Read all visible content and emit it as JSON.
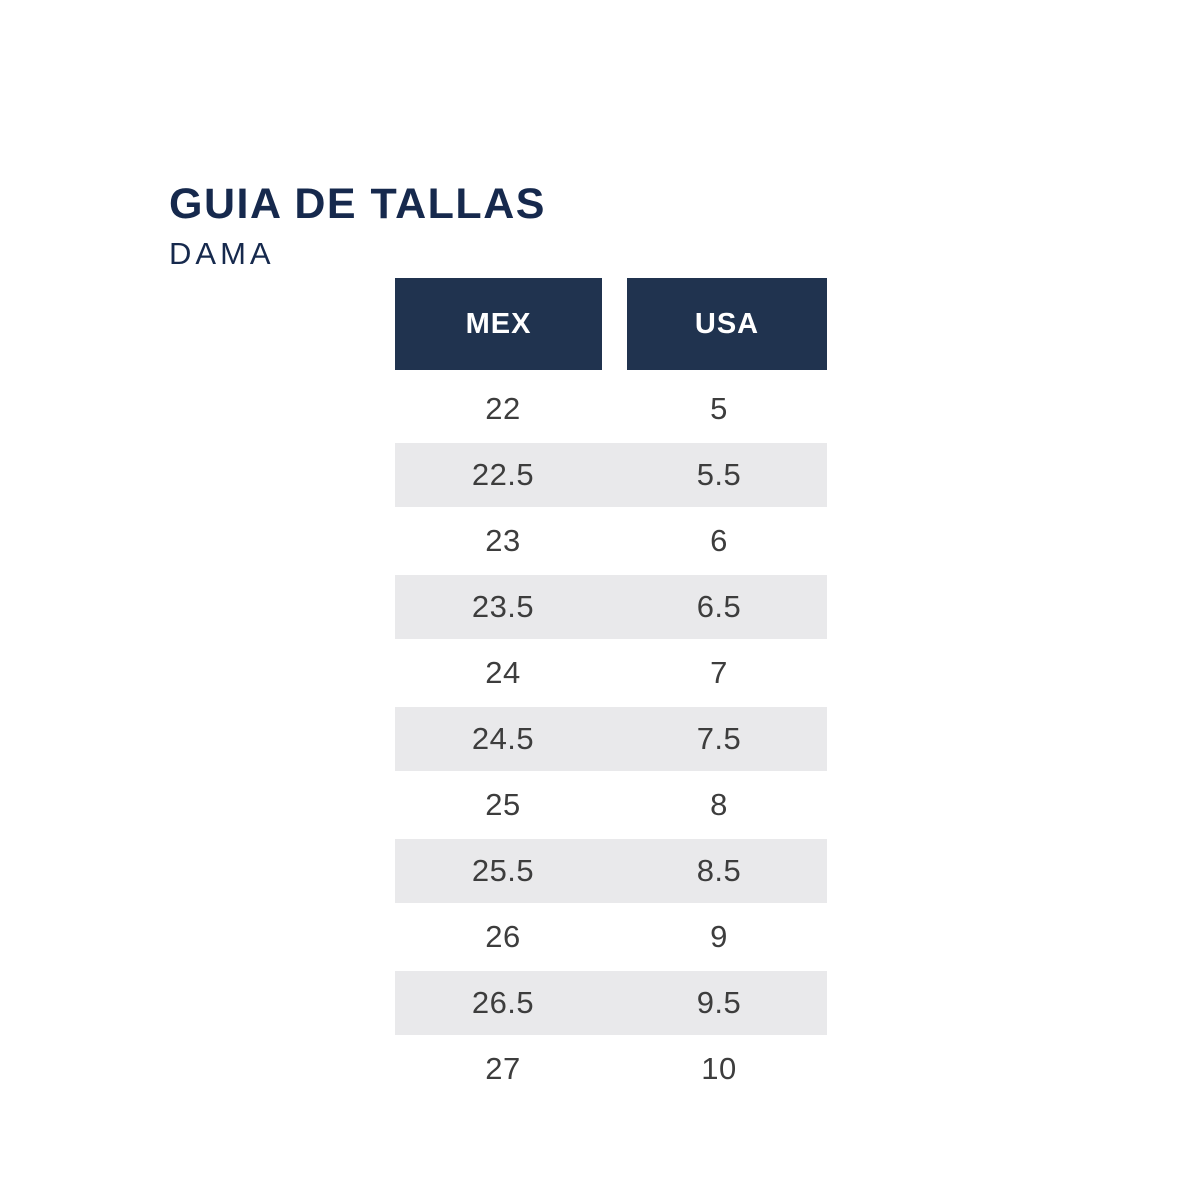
{
  "page": {
    "title": "GUIA DE TALLAS",
    "subtitle": "DAMA"
  },
  "chart_data": {
    "type": "table",
    "title": "GUIA DE TALLAS",
    "subtitle": "DAMA",
    "columns": [
      "MEX",
      "USA"
    ],
    "rows": [
      [
        "22",
        "5"
      ],
      [
        "22.5",
        "5.5"
      ],
      [
        "23",
        "6"
      ],
      [
        "23.5",
        "6.5"
      ],
      [
        "24",
        "7"
      ],
      [
        "24.5",
        "7.5"
      ],
      [
        "25",
        "8"
      ],
      [
        "25.5",
        "8.5"
      ],
      [
        "26",
        "9"
      ],
      [
        "26.5",
        "9.5"
      ],
      [
        "27",
        "10"
      ]
    ],
    "layout": {
      "striped_rows": "even rows shaded",
      "header_style": "two separate navy blocks with white gap"
    }
  },
  "colors": {
    "page_bg": "#ffffff",
    "title_text": "#16294d",
    "header_bg": "#20334f",
    "header_text": "#ffffff",
    "row_alt_bg": "#e9e9eb",
    "row_text": "#3d3d3d"
  }
}
